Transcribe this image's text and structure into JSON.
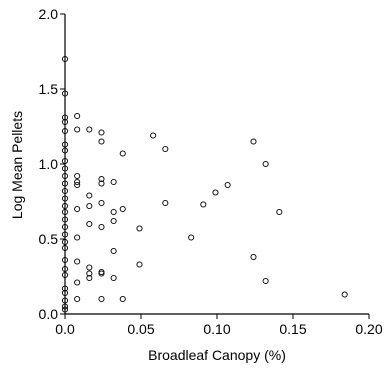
{
  "chart_data": {
    "type": "scatter",
    "xlabel": "Broadleaf Canopy (%)",
    "ylabel": "Log Mean Pellets",
    "xlim": [
      0,
      0.2
    ],
    "ylim": [
      0,
      2.0
    ],
    "xticks": [
      "0.0",
      "0.05",
      "0.10",
      "0.15",
      "0.20"
    ],
    "xtick_values": [
      0,
      0.05,
      0.1,
      0.15,
      0.2
    ],
    "yticks": [
      "0.0",
      "0.5",
      "1.0",
      "1.5",
      "2.0"
    ],
    "ytick_values": [
      0,
      0.5,
      1.0,
      1.5,
      2.0
    ],
    "grid": false,
    "marker": "open-circle",
    "series": [
      {
        "points": [
          [
            0.0,
            1.7
          ],
          [
            0.0,
            1.47
          ],
          [
            0.0,
            1.31
          ],
          [
            0.0,
            1.28
          ],
          [
            0.0,
            1.22
          ],
          [
            0.0,
            1.13
          ],
          [
            0.0,
            1.09
          ],
          [
            0.0,
            1.02
          ],
          [
            0.0,
            0.97
          ],
          [
            0.0,
            0.92
          ],
          [
            0.0,
            0.87
          ],
          [
            0.0,
            0.82
          ],
          [
            0.0,
            0.77
          ],
          [
            0.0,
            0.72
          ],
          [
            0.0,
            0.68
          ],
          [
            0.0,
            0.63
          ],
          [
            0.0,
            0.58
          ],
          [
            0.0,
            0.53
          ],
          [
            0.0,
            0.48
          ],
          [
            0.0,
            0.44
          ],
          [
            0.0,
            0.36
          ],
          [
            0.0,
            0.3
          ],
          [
            0.0,
            0.26
          ],
          [
            0.0,
            0.17
          ],
          [
            0.0,
            0.14
          ],
          [
            0.0,
            0.09
          ],
          [
            0.0,
            0.05
          ],
          [
            0.0,
            0.03
          ],
          [
            0.008,
            1.32
          ],
          [
            0.008,
            1.23
          ],
          [
            0.008,
            0.92
          ],
          [
            0.008,
            0.88
          ],
          [
            0.008,
            0.86
          ],
          [
            0.008,
            0.7
          ],
          [
            0.008,
            0.51
          ],
          [
            0.008,
            0.35
          ],
          [
            0.008,
            0.21
          ],
          [
            0.008,
            0.1
          ],
          [
            0.016,
            1.23
          ],
          [
            0.016,
            0.79
          ],
          [
            0.016,
            0.72
          ],
          [
            0.016,
            0.6
          ],
          [
            0.016,
            0.31
          ],
          [
            0.016,
            0.27
          ],
          [
            0.016,
            0.24
          ],
          [
            0.024,
            1.21
          ],
          [
            0.024,
            1.15
          ],
          [
            0.024,
            0.9
          ],
          [
            0.024,
            0.87
          ],
          [
            0.024,
            0.74
          ],
          [
            0.024,
            0.58
          ],
          [
            0.024,
            0.28
          ],
          [
            0.024,
            0.27
          ],
          [
            0.024,
            0.1
          ],
          [
            0.032,
            0.88
          ],
          [
            0.032,
            0.68
          ],
          [
            0.032,
            0.62
          ],
          [
            0.032,
            0.42
          ],
          [
            0.032,
            0.24
          ],
          [
            0.038,
            1.07
          ],
          [
            0.038,
            0.7
          ],
          [
            0.038,
            0.1
          ],
          [
            0.049,
            0.57
          ],
          [
            0.049,
            0.33
          ],
          [
            0.058,
            1.19
          ],
          [
            0.066,
            1.1
          ],
          [
            0.066,
            0.74
          ],
          [
            0.083,
            0.51
          ],
          [
            0.091,
            0.73
          ],
          [
            0.099,
            0.81
          ],
          [
            0.107,
            0.86
          ],
          [
            0.124,
            1.15
          ],
          [
            0.124,
            0.38
          ],
          [
            0.132,
            1.0
          ],
          [
            0.132,
            0.22
          ],
          [
            0.141,
            0.68
          ],
          [
            0.184,
            0.13
          ]
        ]
      }
    ]
  }
}
